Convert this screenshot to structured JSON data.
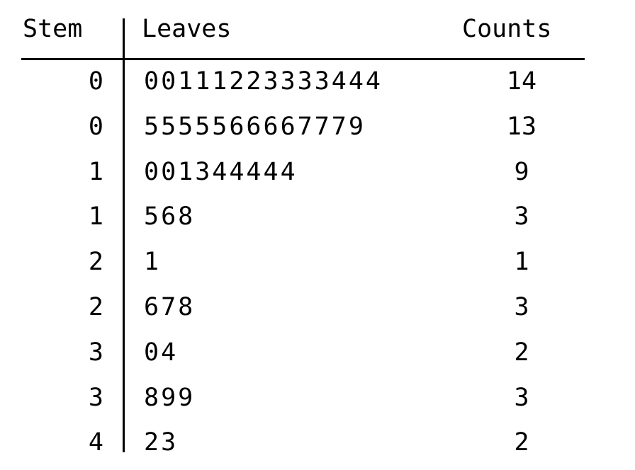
{
  "chart_data": {
    "type": "table",
    "columns": [
      "Stem",
      "Leaves",
      "Counts"
    ],
    "rows": [
      {
        "stem": "0",
        "leaves": "00111223333444",
        "count": "14"
      },
      {
        "stem": "0",
        "leaves": "5555566667779",
        "count": "13"
      },
      {
        "stem": "1",
        "leaves": "001344444",
        "count": "9"
      },
      {
        "stem": "1",
        "leaves": "568",
        "count": "3"
      },
      {
        "stem": "2",
        "leaves": "1",
        "count": "1"
      },
      {
        "stem": "2",
        "leaves": "678",
        "count": "3"
      },
      {
        "stem": "3",
        "leaves": "04",
        "count": "2"
      },
      {
        "stem": "3",
        "leaves": "899",
        "count": "3"
      },
      {
        "stem": "4",
        "leaves": "23",
        "count": "2"
      }
    ]
  }
}
